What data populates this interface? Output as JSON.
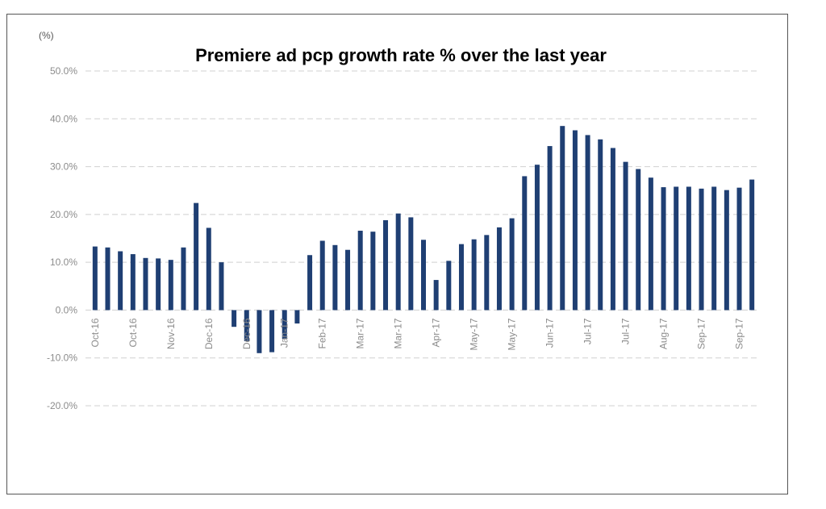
{
  "chart_data": {
    "type": "bar",
    "title": "Premiere ad pcp growth rate % over the last year",
    "y_unit_label": "(%)",
    "categories": [
      "Oct-16",
      null,
      null,
      "Oct-16",
      null,
      null,
      "Nov-16",
      null,
      null,
      "Dec-16",
      null,
      null,
      "Dec-16",
      null,
      null,
      "Jan-17",
      null,
      null,
      "Feb-17",
      null,
      null,
      "Mar-17",
      null,
      null,
      "Mar-17",
      null,
      null,
      "Apr-17",
      null,
      null,
      "May-17",
      null,
      null,
      "May-17",
      null,
      null,
      "Jun-17",
      null,
      null,
      "Jul-17",
      null,
      null,
      "Jul-17",
      null,
      null,
      "Aug-17",
      null,
      null,
      "Sep-17",
      null,
      null,
      "Sep-17",
      null
    ],
    "values": [
      13.3,
      13.1,
      12.3,
      11.7,
      10.9,
      10.8,
      10.5,
      13.1,
      22.4,
      17.2,
      10.0,
      -3.5,
      -6.5,
      -9.0,
      -8.8,
      -6.0,
      -2.8,
      11.5,
      14.5,
      13.6,
      12.6,
      16.6,
      16.4,
      18.8,
      20.2,
      19.4,
      14.7,
      6.3,
      10.3,
      13.8,
      14.8,
      15.7,
      17.3,
      19.2,
      28.0,
      30.4,
      34.3,
      38.5,
      37.6,
      36.6,
      35.7,
      33.9,
      31.0,
      29.5,
      27.7,
      25.7,
      25.8,
      25.8,
      25.4,
      25.8,
      25.1,
      25.6,
      27.3
    ],
    "color": "#1f3f73",
    "ylim": [
      -20,
      50
    ],
    "yticks": [
      {
        "value": -20,
        "label": "-20.0%"
      },
      {
        "value": -10,
        "label": "-10.0%"
      },
      {
        "value": 0,
        "label": "0.0%"
      },
      {
        "value": 10,
        "label": "10.0%"
      },
      {
        "value": 20,
        "label": "20.0%"
      },
      {
        "value": 30,
        "label": "30.0%"
      },
      {
        "value": 40,
        "label": "40.0%"
      },
      {
        "value": 50,
        "label": "50.0%"
      }
    ],
    "grid": true
  }
}
